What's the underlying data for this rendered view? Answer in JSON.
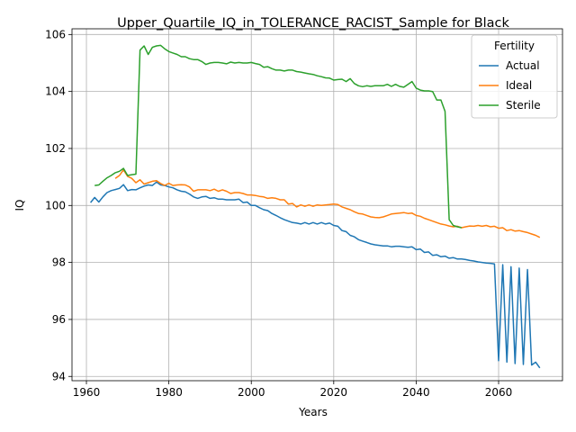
{
  "chart_data": {
    "type": "line",
    "title": "Upper_Quartile_IQ_in_TOLERANCE_RACIST_Sample for Black",
    "xlabel": "Years",
    "ylabel": "IQ",
    "xlim": [
      1956.5,
      2075.5
    ],
    "ylim": [
      93.85,
      106.2
    ],
    "xticks": [
      1960,
      1980,
      2000,
      2020,
      2040,
      2060
    ],
    "xtick_labels": [
      "1960",
      "1980",
      "2000",
      "2020",
      "2040",
      "2060"
    ],
    "yticks": [
      94,
      96,
      98,
      100,
      102,
      104,
      106
    ],
    "ytick_labels": [
      "94",
      "96",
      "98",
      "100",
      "102",
      "104",
      "106"
    ],
    "grid": true,
    "legend": {
      "title": "Fertility",
      "position": "top-right"
    },
    "series": [
      {
        "name": "Actual",
        "color": "#1f77b4",
        "points": [
          [
            1961,
            100.1
          ],
          [
            1962,
            100.28
          ],
          [
            1963,
            100.12
          ],
          [
            1964,
            100.3
          ],
          [
            1965,
            100.45
          ],
          [
            1966,
            100.52
          ],
          [
            1967,
            100.56
          ],
          [
            1968,
            100.6
          ],
          [
            1969,
            100.73
          ],
          [
            1970,
            100.52
          ],
          [
            1971,
            100.56
          ],
          [
            1972,
            100.55
          ],
          [
            1973,
            100.62
          ],
          [
            1974,
            100.68
          ],
          [
            1975,
            100.72
          ],
          [
            1976,
            100.7
          ],
          [
            1977,
            100.82
          ],
          [
            1978,
            100.72
          ],
          [
            1979,
            100.7
          ],
          [
            1980,
            100.65
          ],
          [
            1981,
            100.62
          ],
          [
            1982,
            100.55
          ],
          [
            1983,
            100.5
          ],
          [
            1984,
            100.48
          ],
          [
            1985,
            100.4
          ],
          [
            1986,
            100.3
          ],
          [
            1987,
            100.25
          ],
          [
            1988,
            100.3
          ],
          [
            1989,
            100.32
          ],
          [
            1990,
            100.25
          ],
          [
            1991,
            100.27
          ],
          [
            1992,
            100.22
          ],
          [
            1993,
            100.22
          ],
          [
            1994,
            100.2
          ],
          [
            1995,
            100.2
          ],
          [
            1996,
            100.2
          ],
          [
            1997,
            100.22
          ],
          [
            1998,
            100.1
          ],
          [
            1999,
            100.12
          ],
          [
            2000,
            100.0
          ],
          [
            2001,
            100.0
          ],
          [
            2002,
            99.92
          ],
          [
            2003,
            99.85
          ],
          [
            2004,
            99.82
          ],
          [
            2005,
            99.72
          ],
          [
            2006,
            99.65
          ],
          [
            2007,
            99.57
          ],
          [
            2008,
            99.5
          ],
          [
            2009,
            99.45
          ],
          [
            2010,
            99.4
          ],
          [
            2011,
            99.38
          ],
          [
            2012,
            99.35
          ],
          [
            2013,
            99.4
          ],
          [
            2014,
            99.35
          ],
          [
            2015,
            99.4
          ],
          [
            2016,
            99.35
          ],
          [
            2017,
            99.4
          ],
          [
            2018,
            99.35
          ],
          [
            2019,
            99.38
          ],
          [
            2020,
            99.3
          ],
          [
            2021,
            99.27
          ],
          [
            2022,
            99.12
          ],
          [
            2023,
            99.08
          ],
          [
            2024,
            98.95
          ],
          [
            2025,
            98.9
          ],
          [
            2026,
            98.8
          ],
          [
            2027,
            98.75
          ],
          [
            2028,
            98.7
          ],
          [
            2029,
            98.65
          ],
          [
            2030,
            98.62
          ],
          [
            2031,
            98.6
          ],
          [
            2032,
            98.58
          ],
          [
            2033,
            98.58
          ],
          [
            2034,
            98.55
          ],
          [
            2035,
            98.57
          ],
          [
            2036,
            98.57
          ],
          [
            2037,
            98.55
          ],
          [
            2038,
            98.53
          ],
          [
            2039,
            98.55
          ],
          [
            2040,
            98.45
          ],
          [
            2041,
            98.47
          ],
          [
            2042,
            98.35
          ],
          [
            2043,
            98.37
          ],
          [
            2044,
            98.25
          ],
          [
            2045,
            98.27
          ],
          [
            2046,
            98.2
          ],
          [
            2047,
            98.22
          ],
          [
            2048,
            98.15
          ],
          [
            2049,
            98.17
          ],
          [
            2050,
            98.12
          ],
          [
            2051,
            98.12
          ],
          [
            2052,
            98.1
          ],
          [
            2053,
            98.07
          ],
          [
            2054,
            98.05
          ],
          [
            2055,
            98.02
          ],
          [
            2056,
            98.0
          ],
          [
            2057,
            97.98
          ],
          [
            2058,
            97.97
          ],
          [
            2059,
            97.95
          ],
          [
            2060,
            94.55
          ],
          [
            2061,
            97.92
          ],
          [
            2062,
            94.5
          ],
          [
            2063,
            97.85
          ],
          [
            2064,
            94.45
          ],
          [
            2065,
            97.8
          ],
          [
            2066,
            94.42
          ],
          [
            2067,
            97.75
          ],
          [
            2068,
            94.4
          ],
          [
            2069,
            94.5
          ],
          [
            2070,
            94.3
          ]
        ]
      },
      {
        "name": "Ideal",
        "color": "#ff7f0e",
        "points": [
          [
            1967,
            100.95
          ],
          [
            1968,
            101.05
          ],
          [
            1969,
            101.25
          ],
          [
            1970,
            101.02
          ],
          [
            1971,
            100.95
          ],
          [
            1972,
            100.8
          ],
          [
            1973,
            100.9
          ],
          [
            1974,
            100.75
          ],
          [
            1975,
            100.8
          ],
          [
            1976,
            100.85
          ],
          [
            1977,
            100.87
          ],
          [
            1978,
            100.77
          ],
          [
            1979,
            100.7
          ],
          [
            1980,
            100.78
          ],
          [
            1981,
            100.7
          ],
          [
            1982,
            100.72
          ],
          [
            1983,
            100.73
          ],
          [
            1984,
            100.72
          ],
          [
            1985,
            100.65
          ],
          [
            1986,
            100.5
          ],
          [
            1987,
            100.55
          ],
          [
            1988,
            100.55
          ],
          [
            1989,
            100.55
          ],
          [
            1990,
            100.52
          ],
          [
            1991,
            100.57
          ],
          [
            1992,
            100.5
          ],
          [
            1993,
            100.55
          ],
          [
            1994,
            100.5
          ],
          [
            1995,
            100.42
          ],
          [
            1996,
            100.45
          ],
          [
            1997,
            100.45
          ],
          [
            1998,
            100.42
          ],
          [
            1999,
            100.37
          ],
          [
            2000,
            100.37
          ],
          [
            2001,
            100.35
          ],
          [
            2002,
            100.32
          ],
          [
            2003,
            100.3
          ],
          [
            2004,
            100.25
          ],
          [
            2005,
            100.27
          ],
          [
            2006,
            100.25
          ],
          [
            2007,
            100.2
          ],
          [
            2008,
            100.2
          ],
          [
            2009,
            100.05
          ],
          [
            2010,
            100.07
          ],
          [
            2011,
            99.95
          ],
          [
            2012,
            100.02
          ],
          [
            2013,
            99.97
          ],
          [
            2014,
            100.02
          ],
          [
            2015,
            99.97
          ],
          [
            2016,
            100.02
          ],
          [
            2017,
            100.0
          ],
          [
            2018,
            100.02
          ],
          [
            2019,
            100.03
          ],
          [
            2020,
            100.05
          ],
          [
            2021,
            100.03
          ],
          [
            2022,
            99.95
          ],
          [
            2023,
            99.9
          ],
          [
            2024,
            99.85
          ],
          [
            2025,
            99.78
          ],
          [
            2026,
            99.72
          ],
          [
            2027,
            99.7
          ],
          [
            2028,
            99.65
          ],
          [
            2029,
            99.6
          ],
          [
            2030,
            99.58
          ],
          [
            2031,
            99.57
          ],
          [
            2032,
            99.6
          ],
          [
            2033,
            99.65
          ],
          [
            2034,
            99.7
          ],
          [
            2035,
            99.72
          ],
          [
            2036,
            99.73
          ],
          [
            2037,
            99.75
          ],
          [
            2038,
            99.72
          ],
          [
            2039,
            99.73
          ],
          [
            2040,
            99.65
          ],
          [
            2041,
            99.62
          ],
          [
            2042,
            99.55
          ],
          [
            2043,
            99.5
          ],
          [
            2044,
            99.45
          ],
          [
            2045,
            99.4
          ],
          [
            2046,
            99.35
          ],
          [
            2047,
            99.32
          ],
          [
            2048,
            99.28
          ],
          [
            2049,
            99.25
          ],
          [
            2050,
            99.27
          ],
          [
            2051,
            99.22
          ],
          [
            2052,
            99.25
          ],
          [
            2053,
            99.28
          ],
          [
            2054,
            99.27
          ],
          [
            2055,
            99.3
          ],
          [
            2056,
            99.27
          ],
          [
            2057,
            99.3
          ],
          [
            2058,
            99.25
          ],
          [
            2059,
            99.27
          ],
          [
            2060,
            99.2
          ],
          [
            2061,
            99.22
          ],
          [
            2062,
            99.12
          ],
          [
            2063,
            99.15
          ],
          [
            2064,
            99.1
          ],
          [
            2065,
            99.12
          ],
          [
            2066,
            99.08
          ],
          [
            2067,
            99.05
          ],
          [
            2068,
            99.0
          ],
          [
            2069,
            98.95
          ],
          [
            2070,
            98.88
          ]
        ]
      },
      {
        "name": "Sterile",
        "color": "#2ca02c",
        "points": [
          [
            1962,
            100.7
          ],
          [
            1963,
            100.72
          ],
          [
            1964,
            100.85
          ],
          [
            1965,
            100.97
          ],
          [
            1966,
            101.05
          ],
          [
            1967,
            101.15
          ],
          [
            1968,
            101.2
          ],
          [
            1969,
            101.3
          ],
          [
            1970,
            101.05
          ],
          [
            1971,
            101.08
          ],
          [
            1972,
            101.1
          ],
          [
            1973,
            105.45
          ],
          [
            1974,
            105.6
          ],
          [
            1975,
            105.3
          ],
          [
            1976,
            105.55
          ],
          [
            1977,
            105.6
          ],
          [
            1978,
            105.62
          ],
          [
            1979,
            105.5
          ],
          [
            1980,
            105.4
          ],
          [
            1981,
            105.35
          ],
          [
            1982,
            105.3
          ],
          [
            1983,
            105.22
          ],
          [
            1984,
            105.22
          ],
          [
            1985,
            105.15
          ],
          [
            1986,
            105.12
          ],
          [
            1987,
            105.12
          ],
          [
            1988,
            105.05
          ],
          [
            1989,
            104.95
          ],
          [
            1990,
            105.0
          ],
          [
            1991,
            105.02
          ],
          [
            1992,
            105.02
          ],
          [
            1993,
            105.0
          ],
          [
            1994,
            104.97
          ],
          [
            1995,
            105.03
          ],
          [
            1996,
            105.0
          ],
          [
            1997,
            105.02
          ],
          [
            1998,
            105.0
          ],
          [
            1999,
            105.0
          ],
          [
            2000,
            105.02
          ],
          [
            2001,
            104.98
          ],
          [
            2002,
            104.95
          ],
          [
            2003,
            104.85
          ],
          [
            2004,
            104.87
          ],
          [
            2005,
            104.8
          ],
          [
            2006,
            104.75
          ],
          [
            2007,
            104.75
          ],
          [
            2008,
            104.72
          ],
          [
            2009,
            104.75
          ],
          [
            2010,
            104.75
          ],
          [
            2011,
            104.7
          ],
          [
            2012,
            104.68
          ],
          [
            2013,
            104.65
          ],
          [
            2014,
            104.62
          ],
          [
            2015,
            104.6
          ],
          [
            2016,
            104.55
          ],
          [
            2017,
            104.52
          ],
          [
            2018,
            104.48
          ],
          [
            2019,
            104.47
          ],
          [
            2020,
            104.4
          ],
          [
            2021,
            104.42
          ],
          [
            2022,
            104.43
          ],
          [
            2023,
            104.35
          ],
          [
            2024,
            104.45
          ],
          [
            2025,
            104.28
          ],
          [
            2026,
            104.2
          ],
          [
            2027,
            104.17
          ],
          [
            2028,
            104.2
          ],
          [
            2029,
            104.18
          ],
          [
            2030,
            104.2
          ],
          [
            2031,
            104.2
          ],
          [
            2032,
            104.2
          ],
          [
            2033,
            104.25
          ],
          [
            2034,
            104.18
          ],
          [
            2035,
            104.25
          ],
          [
            2036,
            104.18
          ],
          [
            2037,
            104.15
          ],
          [
            2038,
            104.25
          ],
          [
            2039,
            104.35
          ],
          [
            2040,
            104.12
          ],
          [
            2041,
            104.05
          ],
          [
            2042,
            104.02
          ],
          [
            2043,
            104.02
          ],
          [
            2044,
            104.0
          ],
          [
            2045,
            103.7
          ],
          [
            2046,
            103.7
          ],
          [
            2047,
            103.3
          ],
          [
            2048,
            99.5
          ],
          [
            2049,
            99.3
          ],
          [
            2050,
            99.25
          ],
          [
            2051,
            99.22
          ]
        ]
      }
    ]
  }
}
